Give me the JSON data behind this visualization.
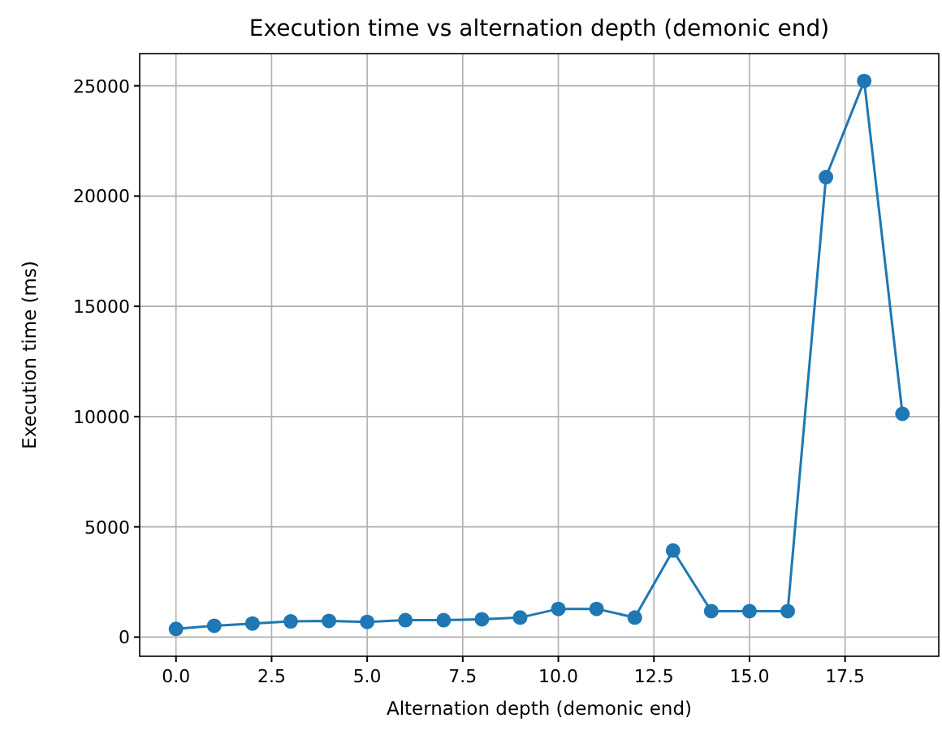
{
  "chart_data": {
    "type": "line",
    "title": "Execution time vs alternation depth (demonic end)",
    "xlabel": "Alternation depth (demonic end)",
    "ylabel": "Execution time (ms)",
    "x": [
      0,
      1,
      2,
      3,
      4,
      5,
      6,
      7,
      8,
      9,
      10,
      11,
      12,
      13,
      14,
      15,
      16,
      17,
      18,
      19
    ],
    "series": [
      {
        "color": "#1f77b4",
        "values": [
          370,
          515,
          615,
          710,
          735,
          690,
          765,
          765,
          810,
          885,
          1280,
          1280,
          885,
          3925,
          1175,
          1175,
          1175,
          20860,
          25220,
          10125
        ]
      }
    ],
    "xlim": [
      -0.95,
      19.95
    ],
    "ylim": [
      -870,
      26460
    ],
    "xticks": [
      {
        "value": 0,
        "label": "0.0"
      },
      {
        "value": 2.5,
        "label": "2.5"
      },
      {
        "value": 5,
        "label": "5.0"
      },
      {
        "value": 7.5,
        "label": "7.5"
      },
      {
        "value": 10,
        "label": "10.0"
      },
      {
        "value": 12.5,
        "label": "12.5"
      },
      {
        "value": 15,
        "label": "15.0"
      },
      {
        "value": 17.5,
        "label": "17.5"
      }
    ],
    "yticks": [
      0,
      5000,
      10000,
      15000,
      20000,
      25000
    ],
    "grid": true,
    "marker": "circle",
    "line_style": "solid"
  }
}
